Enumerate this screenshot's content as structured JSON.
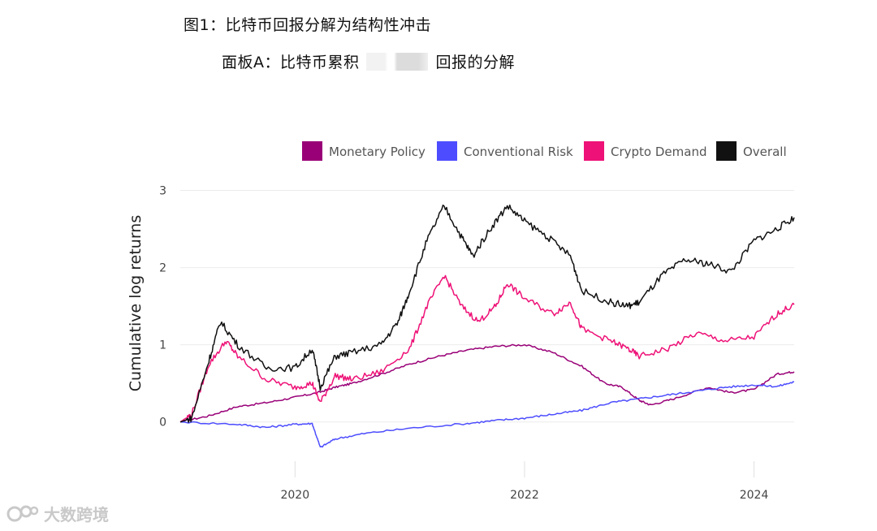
{
  "figure": {
    "title": "图1：比特币回报分解为结构性冲击",
    "panel_title_left": "面板A：比特币累积",
    "panel_title_right": "回报的分解"
  },
  "watermark": {
    "text": "大数跨境",
    "icon": "logo-icon"
  },
  "chart_data": {
    "type": "line",
    "title": "",
    "xlabel": "",
    "ylabel": "Cumulative log returns",
    "xlim": [
      2019.0,
      2024.35
    ],
    "ylim": [
      -0.55,
      3.1
    ],
    "x_ticks": [
      2020,
      2022,
      2024
    ],
    "x_tick_labels": [
      "2020",
      "2022",
      "2024"
    ],
    "y_ticks": [
      0,
      1,
      2,
      3
    ],
    "y_tick_labels": [
      "0",
      "1",
      "2",
      "3"
    ],
    "grid": "horizontal",
    "legend_position": "top-right",
    "series": [
      {
        "name": "Monetary Policy",
        "color": "#990077",
        "points": [
          [
            2019.0,
            0
          ],
          [
            2019.25,
            0.08
          ],
          [
            2019.5,
            0.2
          ],
          [
            2019.75,
            0.25
          ],
          [
            2020.0,
            0.32
          ],
          [
            2020.2,
            0.38
          ],
          [
            2020.35,
            0.45
          ],
          [
            2020.5,
            0.5
          ],
          [
            2020.75,
            0.62
          ],
          [
            2021.0,
            0.75
          ],
          [
            2021.25,
            0.85
          ],
          [
            2021.5,
            0.93
          ],
          [
            2021.75,
            0.98
          ],
          [
            2022.0,
            1.0
          ],
          [
            2022.25,
            0.9
          ],
          [
            2022.5,
            0.72
          ],
          [
            2022.7,
            0.5
          ],
          [
            2022.85,
            0.45
          ],
          [
            2023.0,
            0.28
          ],
          [
            2023.1,
            0.22
          ],
          [
            2023.3,
            0.3
          ],
          [
            2023.6,
            0.45
          ],
          [
            2023.8,
            0.38
          ],
          [
            2024.0,
            0.42
          ],
          [
            2024.2,
            0.62
          ],
          [
            2024.35,
            0.65
          ]
        ]
      },
      {
        "name": "Conventional Risk",
        "color": "#4d4dff",
        "points": [
          [
            2019.0,
            0
          ],
          [
            2019.5,
            -0.03
          ],
          [
            2019.75,
            -0.07
          ],
          [
            2020.0,
            -0.03
          ],
          [
            2020.15,
            -0.02
          ],
          [
            2020.22,
            -0.33
          ],
          [
            2020.35,
            -0.22
          ],
          [
            2020.6,
            -0.15
          ],
          [
            2021.0,
            -0.08
          ],
          [
            2021.5,
            -0.02
          ],
          [
            2021.75,
            0.02
          ],
          [
            2022.0,
            0.05
          ],
          [
            2022.25,
            0.1
          ],
          [
            2022.5,
            0.15
          ],
          [
            2022.75,
            0.25
          ],
          [
            2023.0,
            0.3
          ],
          [
            2023.25,
            0.35
          ],
          [
            2023.5,
            0.4
          ],
          [
            2023.75,
            0.45
          ],
          [
            2024.0,
            0.48
          ],
          [
            2024.2,
            0.46
          ],
          [
            2024.35,
            0.52
          ]
        ]
      },
      {
        "name": "Crypto Demand",
        "color": "#ee1177",
        "points": [
          [
            2019.0,
            0
          ],
          [
            2019.1,
            0.1
          ],
          [
            2019.25,
            0.75
          ],
          [
            2019.4,
            1.05
          ],
          [
            2019.5,
            0.85
          ],
          [
            2019.75,
            0.55
          ],
          [
            2020.0,
            0.45
          ],
          [
            2020.15,
            0.5
          ],
          [
            2020.22,
            0.25
          ],
          [
            2020.35,
            0.6
          ],
          [
            2020.5,
            0.55
          ],
          [
            2020.75,
            0.65
          ],
          [
            2021.0,
            0.95
          ],
          [
            2021.15,
            1.5
          ],
          [
            2021.3,
            1.9
          ],
          [
            2021.45,
            1.5
          ],
          [
            2021.6,
            1.3
          ],
          [
            2021.75,
            1.5
          ],
          [
            2021.85,
            1.8
          ],
          [
            2022.0,
            1.6
          ],
          [
            2022.25,
            1.4
          ],
          [
            2022.4,
            1.55
          ],
          [
            2022.5,
            1.2
          ],
          [
            2022.75,
            1.05
          ],
          [
            2022.9,
            0.95
          ],
          [
            2023.0,
            0.85
          ],
          [
            2023.25,
            0.95
          ],
          [
            2023.5,
            1.15
          ],
          [
            2023.75,
            1.05
          ],
          [
            2024.0,
            1.1
          ],
          [
            2024.2,
            1.4
          ],
          [
            2024.35,
            1.52
          ]
        ]
      },
      {
        "name": "Overall",
        "color": "#111111",
        "points": [
          [
            2019.0,
            0
          ],
          [
            2019.1,
            0.05
          ],
          [
            2019.25,
            0.8
          ],
          [
            2019.35,
            1.3
          ],
          [
            2019.5,
            1.0
          ],
          [
            2019.75,
            0.7
          ],
          [
            2020.0,
            0.7
          ],
          [
            2020.15,
            0.95
          ],
          [
            2020.22,
            0.45
          ],
          [
            2020.35,
            0.85
          ],
          [
            2020.5,
            0.9
          ],
          [
            2020.75,
            1.0
          ],
          [
            2020.9,
            1.3
          ],
          [
            2021.0,
            1.7
          ],
          [
            2021.15,
            2.35
          ],
          [
            2021.3,
            2.8
          ],
          [
            2021.45,
            2.4
          ],
          [
            2021.55,
            2.15
          ],
          [
            2021.7,
            2.5
          ],
          [
            2021.85,
            2.8
          ],
          [
            2022.0,
            2.6
          ],
          [
            2022.2,
            2.4
          ],
          [
            2022.4,
            2.15
          ],
          [
            2022.5,
            1.7
          ],
          [
            2022.75,
            1.55
          ],
          [
            2022.9,
            1.5
          ],
          [
            2023.0,
            1.55
          ],
          [
            2023.2,
            1.9
          ],
          [
            2023.4,
            2.1
          ],
          [
            2023.6,
            2.05
          ],
          [
            2023.8,
            1.95
          ],
          [
            2024.0,
            2.35
          ],
          [
            2024.2,
            2.5
          ],
          [
            2024.35,
            2.65
          ]
        ]
      }
    ]
  }
}
